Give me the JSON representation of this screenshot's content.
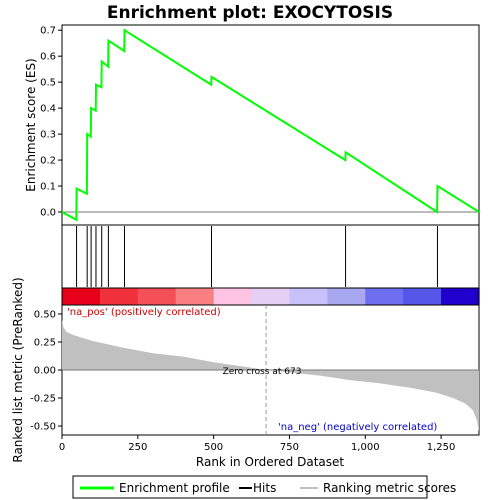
{
  "chart_data": {
    "type": "line",
    "title": "Enrichment plot: EXOCYTOSIS",
    "xlabel": "Rank in Ordered Dataset",
    "ylabel_top": "Enrichment score (ES)",
    "ylabel_bottom": "Ranked list metric (PreRanked)",
    "xlim": [
      0,
      1375
    ],
    "x_ticks": [
      0,
      250,
      500,
      750,
      1000,
      1250
    ],
    "x_tick_labels": [
      "0",
      "250",
      "500",
      "750",
      "1,000",
      "1,250"
    ],
    "es_ylim": [
      -0.05,
      0.72
    ],
    "es_ticks": [
      0.0,
      0.1,
      0.2,
      0.3,
      0.4,
      0.5,
      0.6,
      0.7
    ],
    "es_tick_labels": [
      "0.0",
      "0.1",
      "0.2",
      "0.3",
      "0.4",
      "0.5",
      "0.6",
      "0.7"
    ],
    "metric_ylim": [
      -0.58,
      0.58
    ],
    "metric_ticks": [
      0.5,
      0.25,
      0.0,
      -0.25,
      -0.5
    ],
    "metric_tick_labels": [
      "0.50",
      "0.25",
      "0.00",
      "-0.25",
      "-0.50"
    ],
    "hits": [
      48,
      83,
      96,
      112,
      131,
      153,
      206,
      493,
      935,
      1238
    ],
    "enrichment_profile": {
      "name": "Enrichment profile",
      "color": "#00ff00",
      "points": [
        [
          0,
          0.0
        ],
        [
          47,
          -0.03
        ],
        [
          48,
          0.09
        ],
        [
          82,
          0.07
        ],
        [
          83,
          0.3
        ],
        [
          95,
          0.29
        ],
        [
          96,
          0.4
        ],
        [
          111,
          0.39
        ],
        [
          112,
          0.49
        ],
        [
          130,
          0.48
        ],
        [
          131,
          0.58
        ],
        [
          152,
          0.56
        ],
        [
          153,
          0.66
        ],
        [
          205,
          0.62
        ],
        [
          206,
          0.7
        ],
        [
          492,
          0.49
        ],
        [
          493,
          0.52
        ],
        [
          934,
          0.2
        ],
        [
          935,
          0.23
        ],
        [
          1237,
          0.0
        ],
        [
          1238,
          0.1
        ],
        [
          1375,
          0.0
        ]
      ]
    },
    "ranking_metric": {
      "name": "Ranking metric scores",
      "color": "#c0c0c0",
      "points": [
        [
          0,
          0.45
        ],
        [
          5,
          0.38
        ],
        [
          15,
          0.34
        ],
        [
          40,
          0.31
        ],
        [
          100,
          0.26
        ],
        [
          200,
          0.2
        ],
        [
          300,
          0.15
        ],
        [
          400,
          0.12
        ],
        [
          500,
          0.07
        ],
        [
          600,
          0.03
        ],
        [
          673,
          0.0
        ],
        [
          750,
          -0.02
        ],
        [
          850,
          -0.05
        ],
        [
          950,
          -0.09
        ],
        [
          1050,
          -0.12
        ],
        [
          1150,
          -0.16
        ],
        [
          1230,
          -0.2
        ],
        [
          1290,
          -0.25
        ],
        [
          1330,
          -0.3
        ],
        [
          1355,
          -0.36
        ],
        [
          1368,
          -0.45
        ],
        [
          1375,
          -0.55
        ]
      ]
    },
    "zero_cross": 673,
    "annotations": {
      "pos_label": "'na_pos' (positively correlated)",
      "neg_label": "'na_neg' (negatively correlated)",
      "zero_label": "Zero cross at 673"
    },
    "heat_colors": [
      "#e8001a",
      "#f0303a",
      "#f55058",
      "#fa7f80",
      "#ffc4e4",
      "#e4d0f4",
      "#c8c0f8",
      "#a8a8f0",
      "#6e6ef0",
      "#5555e8",
      "#2000cc"
    ],
    "legend": {
      "placement": "bottom",
      "entries": [
        "Enrichment profile",
        "Hits",
        "Ranking metric scores"
      ],
      "colors": [
        "#00ff00",
        "#000000",
        "#c0c0c0"
      ]
    }
  }
}
